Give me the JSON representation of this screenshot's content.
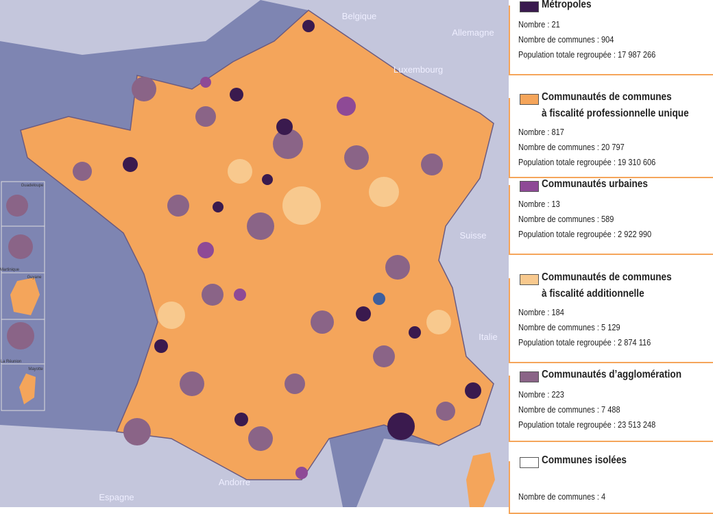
{
  "map": {
    "countries": [
      "Belgique",
      "Allemagne",
      "Luxembourg",
      "Suisse",
      "Italie",
      "Espagne",
      "Andorre"
    ],
    "overseas": [
      "Guadeloupe",
      "Martinique",
      "Guyane",
      "La Réunion",
      "Mayotte"
    ]
  },
  "legend": [
    {
      "title": [
        "Métropoles"
      ],
      "color": "#3a1a4e",
      "lines": [
        "Nombre : 21",
        "Nombre de communes : 904",
        "Population totale regroupée : 17 987 266"
      ]
    },
    {
      "title": [
        "Communautés de communes",
        "à fiscalité professionnelle unique"
      ],
      "color": "#f5a55a",
      "lines": [
        "Nombre : 817",
        "Nombre de communes : 20 797",
        "Population totale regroupée : 19 310 606"
      ]
    },
    {
      "title": [
        "Communautés urbaines"
      ],
      "color": "#8e4a96",
      "lines": [
        "Nombre : 13",
        "Nombre de communes : 589",
        "Population totale regroupée : 2 922 990"
      ]
    },
    {
      "title": [
        "Communautés de communes",
        "à fiscalité additionnelle"
      ],
      "color": "#f8c98e",
      "lines": [
        "Nombre : 184",
        "Nombre de communes : 5 129",
        "Population totale regroupée : 2 874 116"
      ]
    },
    {
      "title": [
        "Communautés d’agglomération"
      ],
      "color": "#8a6487",
      "lines": [
        "Nombre : 223",
        "Nombre de communes : 7 488",
        "Population totale regroupée : 23 513 248"
      ]
    },
    {
      "title": [
        "Communes isolées"
      ],
      "color": "#ffffff",
      "lines": [
        "Nombre de communes : 4"
      ]
    }
  ]
}
